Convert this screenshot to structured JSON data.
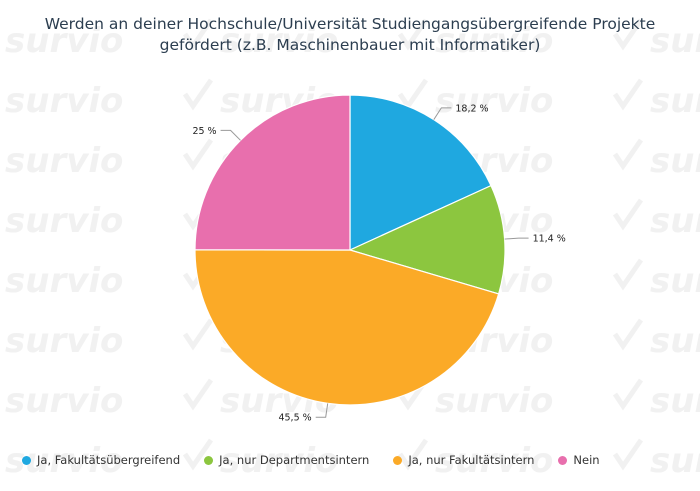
{
  "watermark_text": "survio",
  "chart_data": {
    "type": "pie",
    "title": "Werden an deiner Hochschule/Universität Studiengangsübergreifende Projekte gefördert (z.B. Maschinenbauer mit Informatiker)",
    "categories": [
      "Ja, Fakultätsübergreifend",
      "Ja, nur Departmentsintern",
      "Ja, nur Fakultätsintern",
      "Nein"
    ],
    "values": [
      18.2,
      11.4,
      45.5,
      25
    ],
    "value_labels": [
      "18,2 %",
      "11,4 %",
      "45,5 %",
      "25 %"
    ],
    "colors": [
      "#1fa8e0",
      "#8cc63f",
      "#fbaa27",
      "#e86fad"
    ],
    "legend_position": "bottom-left"
  }
}
